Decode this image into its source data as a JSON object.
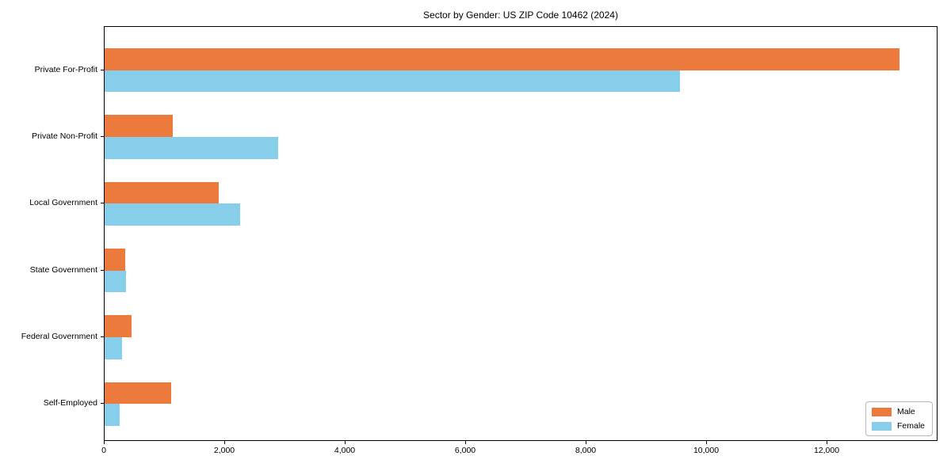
{
  "chart_data": {
    "type": "bar",
    "orientation": "horizontal",
    "title": "Sector by Gender: US ZIP Code 10462 (2024)",
    "categories": [
      "Private For-Profit",
      "Private Non-Profit",
      "Local Government",
      "State Government",
      "Federal Government",
      "Self-Employed"
    ],
    "series": [
      {
        "name": "Male",
        "color": "#ec7a3d",
        "values": [
          13200,
          1130,
          1900,
          340,
          450,
          1100
        ]
      },
      {
        "name": "Female",
        "color": "#87ceeb",
        "values": [
          9550,
          2880,
          2250,
          360,
          290,
          250
        ]
      }
    ],
    "xlabel": "",
    "ylabel": "",
    "xlim": [
      0,
      13842
    ],
    "xticks": [
      0,
      2000,
      4000,
      6000,
      8000,
      10000,
      12000
    ],
    "xtick_labels": [
      "0",
      "2,000",
      "4,000",
      "6,000",
      "8,000",
      "10,000",
      "12,000"
    ],
    "grid": false,
    "legend": {
      "position": "lower-right",
      "entries": [
        "Male",
        "Female"
      ]
    },
    "axis_color": "#000000",
    "text_color": "#000000"
  }
}
